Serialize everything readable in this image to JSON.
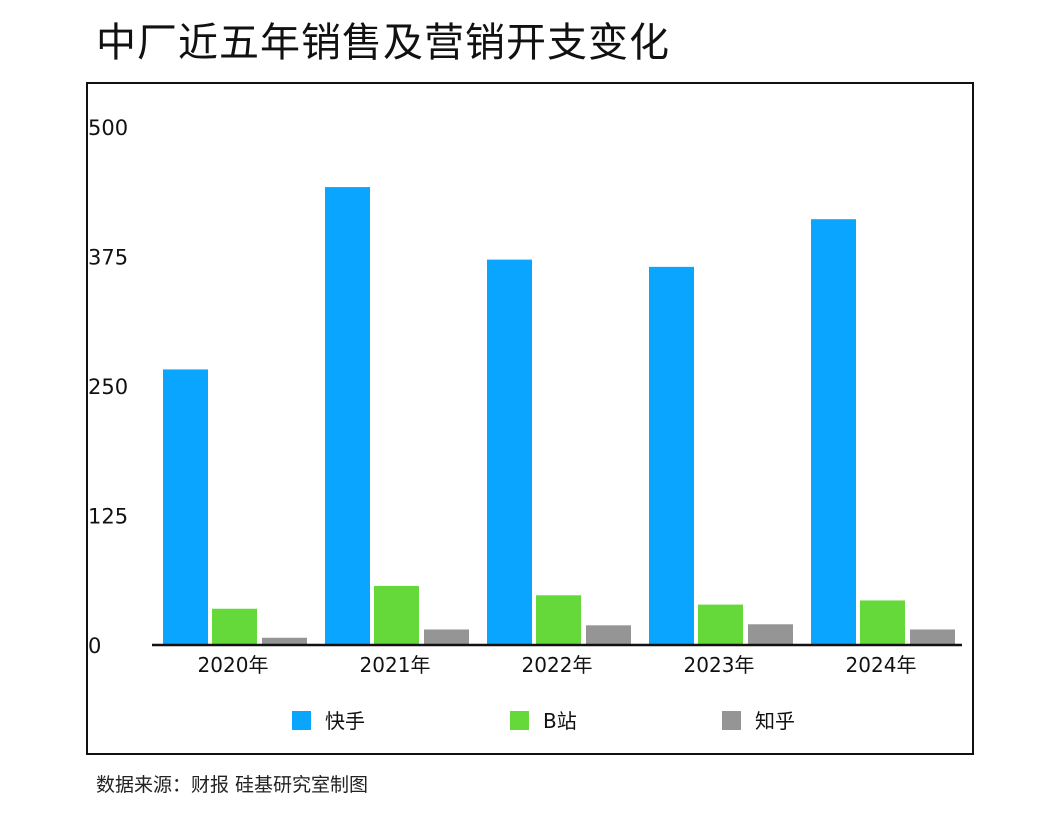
{
  "title": "中厂近五年销售及营销开支变化",
  "source": "数据来源：财报 硅基研究室制图",
  "chart_data": {
    "type": "bar",
    "title": "中厂近五年销售及营销开支变化",
    "categories": [
      "2020年",
      "2021年",
      "2022年",
      "2023年",
      "2024年"
    ],
    "series": [
      {
        "name": "快手",
        "color": "#0aa5ff",
        "values": [
          266,
          442,
          372,
          365,
          411
        ]
      },
      {
        "name": "B站",
        "color": "#66d93a",
        "values": [
          35,
          57,
          48,
          39,
          43
        ]
      },
      {
        "name": "知乎",
        "color": "#959595",
        "values": [
          7,
          15,
          19,
          20,
          15
        ]
      }
    ],
    "yticks": [
      0,
      125,
      250,
      375,
      500
    ],
    "ylim": [
      0,
      500
    ],
    "grid": false,
    "legend": "bottom"
  }
}
